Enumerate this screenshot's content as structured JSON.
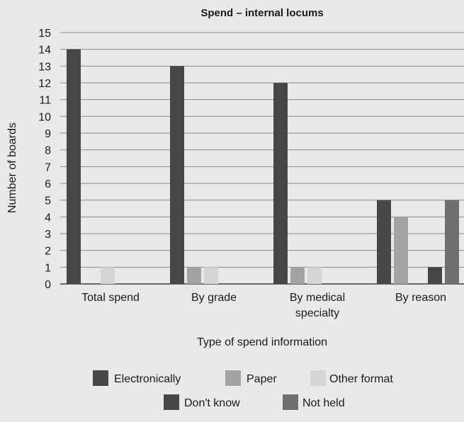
{
  "chart_data": {
    "type": "bar",
    "title": "Spend – internal locums",
    "xlabel": "Type of spend information",
    "ylabel": "Number of boards",
    "ylim": [
      0,
      15
    ],
    "yticks": [
      0,
      1,
      2,
      3,
      4,
      5,
      6,
      7,
      8,
      9,
      10,
      11,
      12,
      13,
      14,
      15
    ],
    "grid": true,
    "legend_position": "bottom",
    "categories": [
      [
        "Total spend"
      ],
      [
        "By grade"
      ],
      [
        "By medical",
        "specialty"
      ],
      [
        "By reason"
      ]
    ],
    "series": [
      {
        "name": "Electronically",
        "color": "#454647",
        "values": [
          14,
          13,
          12,
          5
        ]
      },
      {
        "name": "Paper",
        "color": "#a2a3a4",
        "values": [
          0,
          1,
          1,
          4
        ]
      },
      {
        "name": "Other format",
        "color": "#d5d6d7",
        "values": [
          1,
          1,
          1,
          0
        ]
      },
      {
        "name": "Don't know",
        "color": "#454647",
        "values": [
          0,
          0,
          0,
          1
        ]
      },
      {
        "name": "Not held",
        "color": "#6e6f70",
        "values": [
          0,
          0,
          0,
          5
        ]
      }
    ]
  }
}
